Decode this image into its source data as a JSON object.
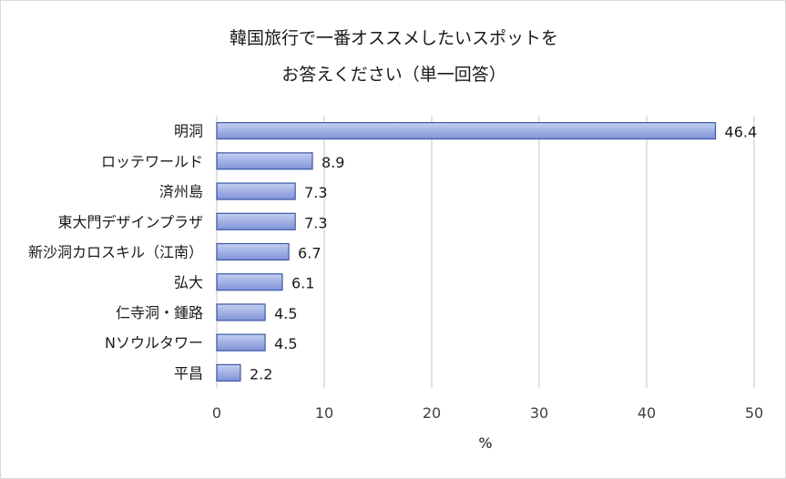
{
  "chart_data": {
    "type": "bar",
    "orientation": "horizontal",
    "title_line1": "韓国旅行で一番オススメしたいスポットを",
    "title_line2": "お答えください（単一回答）",
    "categories": [
      "明洞",
      "ロッテワールド",
      "済州島",
      "東大門デザインプラザ",
      "新沙洞カロスキル（江南）",
      "弘大",
      "仁寺洞・鍾路",
      "Nソウルタワー",
      "平昌"
    ],
    "values": [
      46.4,
      8.9,
      7.3,
      7.3,
      6.7,
      6.1,
      4.5,
      4.5,
      2.2
    ],
    "value_labels": [
      "46.4",
      "8.9",
      "7.3",
      "7.3",
      "6.7",
      "6.1",
      "4.5",
      "4.5",
      "2.2"
    ],
    "xlabel": "%",
    "ylabel": "",
    "xlim": [
      0,
      50
    ],
    "xticks": [
      0,
      10,
      20,
      30,
      40,
      50
    ],
    "xtick_labels": [
      "0",
      "10",
      "20",
      "30",
      "40",
      "50"
    ],
    "grid": "vertical",
    "legend": "none",
    "bar_fill_top": "#c5cff0",
    "bar_fill_bottom": "#7f93d8",
    "bar_stroke": "#3b57a8"
  }
}
